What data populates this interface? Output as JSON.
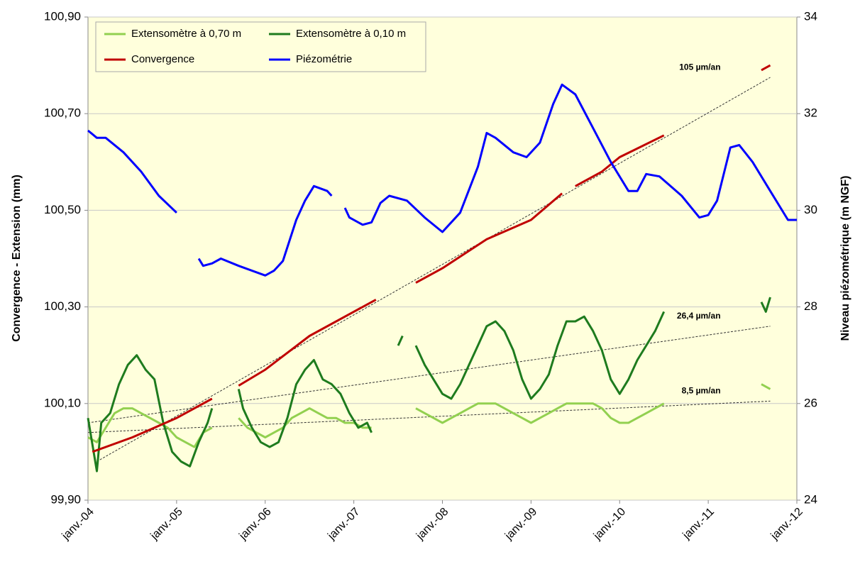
{
  "chart_data": {
    "type": "line",
    "y_label": "Convergence - Extension (mm)",
    "y2_label": "Niveau piézométrique (m NGF)",
    "xlim": [
      2004,
      2012
    ],
    "xticks": [
      {
        "value": 2004,
        "label": "janv.-04"
      },
      {
        "value": 2005,
        "label": "janv.-05"
      },
      {
        "value": 2006,
        "label": "janv.-06"
      },
      {
        "value": 2007,
        "label": "janv.-07"
      },
      {
        "value": 2008,
        "label": "janv.-08"
      },
      {
        "value": 2009,
        "label": "janv.-09"
      },
      {
        "value": 2010,
        "label": "janv.-10"
      },
      {
        "value": 2011,
        "label": "janv.-11"
      },
      {
        "value": 2012,
        "label": "janv.-12"
      }
    ],
    "ylim": [
      99.9,
      100.9
    ],
    "yticks": [
      {
        "value": 99.9,
        "label": "99,90"
      },
      {
        "value": 100.1,
        "label": "100,10"
      },
      {
        "value": 100.3,
        "label": "100,30"
      },
      {
        "value": 100.5,
        "label": "100,50"
      },
      {
        "value": 100.7,
        "label": "100,70"
      },
      {
        "value": 100.9,
        "label": "100,90"
      }
    ],
    "y2lim": [
      24,
      34
    ],
    "y2ticks": [
      24,
      26,
      28,
      30,
      32,
      34
    ],
    "grid": true,
    "legend": "top-left",
    "series": [
      {
        "name": "Extensomètre à 0,70 m",
        "color": "#92d050",
        "x": [
          2004.0,
          2004.1,
          2004.2,
          2004.3,
          2004.4,
          2004.5,
          2004.6,
          2004.7,
          2004.8,
          2004.9,
          2005.0,
          2005.1,
          2005.2,
          2005.3,
          2005.4,
          2005.55,
          2005.7,
          2005.8,
          2005.9,
          2006.0,
          2006.1,
          2006.2,
          2006.3,
          2006.4,
          2006.5,
          2006.6,
          2006.7,
          2006.8,
          2006.9,
          2007.0,
          2007.1,
          2007.2,
          2007.35,
          2007.5,
          2007.6,
          2007.7,
          2007.8,
          2007.9,
          2008.0,
          2008.1,
          2008.2,
          2008.3,
          2008.4,
          2008.5,
          2008.6,
          2008.7,
          2008.8,
          2008.9,
          2009.0,
          2009.1,
          2009.2,
          2009.3,
          2009.4,
          2009.5,
          2009.6,
          2009.7,
          2009.8,
          2009.9,
          2010.0,
          2010.1,
          2010.2,
          2010.3,
          2010.4,
          2010.5,
          2011.0,
          2011.6,
          2011.7
        ],
        "values": [
          100.03,
          100.02,
          100.05,
          100.08,
          100.09,
          100.09,
          100.08,
          100.07,
          100.06,
          100.05,
          100.03,
          100.02,
          100.01,
          100.04,
          100.05,
          null,
          100.07,
          100.05,
          100.04,
          100.03,
          100.04,
          100.05,
          100.07,
          100.08,
          100.09,
          100.08,
          100.07,
          100.07,
          100.06,
          100.06,
          100.05,
          100.05,
          null,
          100.1,
          null,
          100.09,
          100.08,
          100.07,
          100.06,
          100.07,
          100.08,
          100.09,
          100.1,
          100.1,
          100.1,
          100.09,
          100.08,
          100.07,
          100.06,
          100.07,
          100.08,
          100.09,
          100.1,
          100.1,
          100.1,
          100.1,
          100.09,
          100.07,
          100.06,
          100.06,
          100.07,
          100.08,
          100.09,
          100.1,
          null,
          100.14,
          100.13
        ]
      },
      {
        "name": "Extensomètre à 0,10 m",
        "color": "#1e7b1e",
        "x": [
          2004.0,
          2004.1,
          2004.15,
          2004.25,
          2004.35,
          2004.45,
          2004.55,
          2004.65,
          2004.75,
          2004.85,
          2004.95,
          2005.05,
          2005.15,
          2005.25,
          2005.35,
          2005.4,
          2005.55,
          2005.7,
          2005.75,
          2005.85,
          2005.95,
          2006.05,
          2006.15,
          2006.25,
          2006.35,
          2006.45,
          2006.55,
          2006.65,
          2006.75,
          2006.85,
          2006.95,
          2007.05,
          2007.15,
          2007.2,
          2007.35,
          2007.5,
          2007.55,
          2007.62,
          2007.7,
          2007.8,
          2007.9,
          2008.0,
          2008.1,
          2008.2,
          2008.3,
          2008.4,
          2008.5,
          2008.6,
          2008.7,
          2008.8,
          2008.9,
          2009.0,
          2009.1,
          2009.2,
          2009.3,
          2009.4,
          2009.5,
          2009.6,
          2009.7,
          2009.8,
          2009.9,
          2010.0,
          2010.1,
          2010.2,
          2010.3,
          2010.4,
          2010.5,
          2011.0,
          2011.6,
          2011.65,
          2011.7
        ],
        "values": [
          100.07,
          99.96,
          100.06,
          100.08,
          100.14,
          100.18,
          100.2,
          100.17,
          100.15,
          100.06,
          100.0,
          99.98,
          99.97,
          100.02,
          100.06,
          100.09,
          null,
          100.13,
          100.09,
          100.05,
          100.02,
          100.01,
          100.02,
          100.07,
          100.14,
          100.17,
          100.19,
          100.15,
          100.14,
          100.12,
          100.08,
          100.05,
          100.06,
          100.04,
          null,
          100.22,
          100.24,
          null,
          100.22,
          100.18,
          100.15,
          100.12,
          100.11,
          100.14,
          100.18,
          100.22,
          100.26,
          100.27,
          100.25,
          100.21,
          100.15,
          100.11,
          100.13,
          100.16,
          100.22,
          100.27,
          100.27,
          100.28,
          100.25,
          100.21,
          100.15,
          100.12,
          100.15,
          100.19,
          100.22,
          100.25,
          100.29,
          null,
          100.31,
          100.29,
          100.32
        ]
      },
      {
        "name": "Convergence",
        "color": "#c00000",
        "x": [
          2004.05,
          2004.5,
          2005.0,
          2005.4,
          2005.55,
          2005.7,
          2006.0,
          2006.5,
          2007.0,
          2007.25,
          2007.4,
          2007.5,
          2007.6,
          2007.7,
          2008.0,
          2008.5,
          2009.0,
          2009.35,
          2009.42,
          2009.5,
          2009.8,
          2010.0,
          2010.5,
          2011.0,
          2011.6,
          2011.7
        ],
        "values": [
          100.0,
          100.03,
          100.07,
          100.11,
          null,
          100.137,
          100.17,
          100.24,
          100.29,
          100.315,
          null,
          100.34,
          null,
          100.35,
          100.38,
          100.44,
          100.48,
          100.535,
          null,
          100.55,
          100.58,
          100.61,
          100.655,
          null,
          100.79,
          100.8
        ]
      },
      {
        "name": "Piézométrie",
        "color": "#0000ff",
        "axis": "y2",
        "x": [
          2004.0,
          2004.1,
          2004.2,
          2004.4,
          2004.6,
          2004.8,
          2005.0,
          2005.12,
          2005.25,
          2005.3,
          2005.4,
          2005.5,
          2005.7,
          2006.0,
          2006.1,
          2006.2,
          2006.35,
          2006.45,
          2006.55,
          2006.7,
          2006.75,
          2006.82,
          2006.9,
          2006.95,
          2007.1,
          2007.2,
          2007.3,
          2007.4,
          2007.6,
          2007.8,
          2008.0,
          2008.2,
          2008.4,
          2008.5,
          2008.6,
          2008.8,
          2008.95,
          2009.1,
          2009.25,
          2009.35,
          2009.5,
          2009.7,
          2009.9,
          2010.1,
          2010.2,
          2010.3,
          2010.45,
          2010.7,
          2010.9,
          2011.0,
          2011.1,
          2011.25,
          2011.35,
          2011.5,
          2011.7,
          2011.9,
          2012.0
        ],
        "values": [
          31.65,
          31.5,
          31.5,
          31.2,
          30.8,
          30.3,
          29.95,
          null,
          29.0,
          28.85,
          28.9,
          29.0,
          28.85,
          28.65,
          28.75,
          28.95,
          29.8,
          30.2,
          30.5,
          30.4,
          30.3,
          null,
          30.05,
          29.85,
          29.7,
          29.75,
          30.15,
          30.3,
          30.2,
          29.85,
          29.55,
          29.95,
          30.9,
          31.6,
          31.5,
          31.2,
          31.1,
          31.4,
          32.2,
          32.6,
          32.4,
          31.7,
          31.0,
          30.4,
          30.4,
          30.75,
          30.7,
          30.3,
          29.85,
          29.9,
          30.2,
          31.3,
          31.35,
          31.0,
          30.4,
          29.8,
          29.8
        ]
      }
    ],
    "trendlines": [
      {
        "label": "105 µm/an",
        "x": [
          2004.1,
          2011.7
        ],
        "values": [
          99.98,
          100.775
        ]
      },
      {
        "label": "26,4 µm/an",
        "x": [
          2004.0,
          2011.7
        ],
        "values": [
          100.06,
          100.26
        ]
      },
      {
        "label": "8,5 µm/an",
        "x": [
          2004.0,
          2011.7
        ],
        "values": [
          100.04,
          100.105
        ]
      }
    ]
  }
}
